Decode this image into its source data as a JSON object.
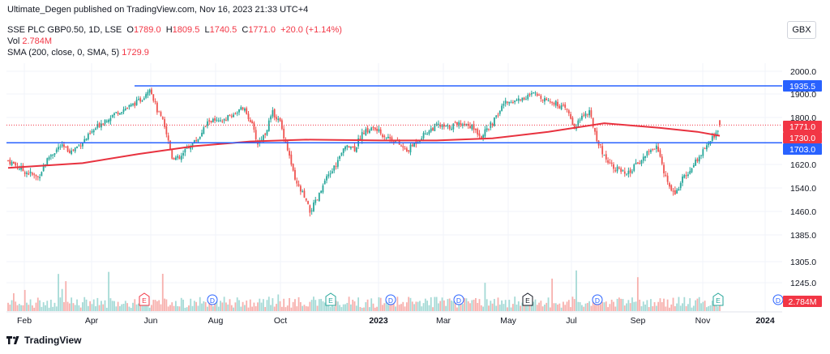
{
  "header": {
    "published": "Ultimate_Degen published on TradingView.com, Nov 16, 2023 21:33 UTC+4",
    "symbol_desc": "SSE PLC GBP0.50, 1D, LSE",
    "o_label": "O",
    "o_value": "1789.0",
    "h_label": "H",
    "h_value": "1809.5",
    "l_label": "L",
    "l_value": "1740.5",
    "c_label": "C",
    "c_value": "1771.0",
    "change": "+20.0 (+1.14%)",
    "vol_label": "Vol",
    "vol_value": "2.784M",
    "sma_label": "SMA (200, close, 0, SMA, 5)",
    "sma_value": "1729.9",
    "currency": "GBX"
  },
  "footer": {
    "brand": "TradingView"
  },
  "colors": {
    "up": "#26a69a",
    "down": "#ef5350",
    "sma": "#e8323f",
    "hline": "#2962ff",
    "label_red": "#f23645",
    "label_blue": "#2962ff"
  },
  "chart_data": {
    "type": "candlestick",
    "y_axis_ticks": [
      "2000.0",
      "1900.0",
      "1800.0",
      "1620.0",
      "1540.0",
      "1460.0",
      "1385.0",
      "1305.0",
      "1245.0"
    ],
    "y_axis_values": [
      2000,
      1900,
      1800,
      1620,
      1540,
      1460,
      1385,
      1305,
      1245
    ],
    "x_labels": [
      "Feb",
      "Apr",
      "Jun",
      "Aug",
      "Oct",
      "2023",
      "Mar",
      "May",
      "Jul",
      "Sep",
      "Nov",
      "2024"
    ],
    "price_labels": [
      {
        "text": "1935.5",
        "value": 1935.5,
        "kind": "blue"
      },
      {
        "text": "1771.0",
        "value": 1771.0,
        "kind": "red"
      },
      {
        "text": "1730.0",
        "value": 1730.0,
        "kind": "red"
      },
      {
        "text": "1703.0",
        "value": 1703.0,
        "kind": "blue"
      },
      {
        "text": "2.784M",
        "kind": "red_volume"
      }
    ],
    "horizontal_lines": [
      1935.5,
      1703.0
    ],
    "event_markers": [
      {
        "letter": "E",
        "style": "earnings-red",
        "month": "May"
      },
      {
        "letter": "D",
        "style": "dividend",
        "month": "Jun"
      },
      {
        "letter": "E",
        "style": "earnings-green",
        "month": "Aug"
      },
      {
        "letter": "D",
        "style": "dividend",
        "month": "Oct"
      },
      {
        "letter": "E",
        "style": "earnings-green",
        "month": "2023"
      },
      {
        "letter": "D",
        "style": "dividend",
        "month": "Feb 2023"
      },
      {
        "letter": "E",
        "style": "earnings-gray",
        "month": "May 2023"
      },
      {
        "letter": "D",
        "style": "dividend",
        "month": "Jul 2023"
      },
      {
        "letter": "E",
        "style": "earnings-green",
        "month": "Nov 2023"
      },
      {
        "letter": "D",
        "style": "dividend",
        "month": "2024"
      }
    ],
    "close_path": [
      {
        "t": 0,
        "c": 1635
      },
      {
        "t": 8,
        "c": 1600
      },
      {
        "t": 16,
        "c": 1575
      },
      {
        "t": 22,
        "c": 1650
      },
      {
        "t": 28,
        "c": 1690
      },
      {
        "t": 34,
        "c": 1670
      },
      {
        "t": 42,
        "c": 1720
      },
      {
        "t": 50,
        "c": 1780
      },
      {
        "t": 58,
        "c": 1820
      },
      {
        "t": 66,
        "c": 1850
      },
      {
        "t": 72,
        "c": 1880
      },
      {
        "t": 76,
        "c": 1930
      },
      {
        "t": 80,
        "c": 1830
      },
      {
        "t": 84,
        "c": 1770
      },
      {
        "t": 88,
        "c": 1650
      },
      {
        "t": 92,
        "c": 1640
      },
      {
        "t": 96,
        "c": 1680
      },
      {
        "t": 102,
        "c": 1720
      },
      {
        "t": 108,
        "c": 1790
      },
      {
        "t": 114,
        "c": 1780
      },
      {
        "t": 120,
        "c": 1810
      },
      {
        "t": 126,
        "c": 1840
      },
      {
        "t": 130,
        "c": 1790
      },
      {
        "t": 134,
        "c": 1700
      },
      {
        "t": 138,
        "c": 1740
      },
      {
        "t": 142,
        "c": 1820
      },
      {
        "t": 146,
        "c": 1780
      },
      {
        "t": 150,
        "c": 1680
      },
      {
        "t": 154,
        "c": 1560
      },
      {
        "t": 158,
        "c": 1520
      },
      {
        "t": 162,
        "c": 1460
      },
      {
        "t": 166,
        "c": 1500
      },
      {
        "t": 170,
        "c": 1560
      },
      {
        "t": 176,
        "c": 1620
      },
      {
        "t": 182,
        "c": 1700
      },
      {
        "t": 186,
        "c": 1680
      },
      {
        "t": 190,
        "c": 1740
      },
      {
        "t": 196,
        "c": 1760
      },
      {
        "t": 202,
        "c": 1730
      },
      {
        "t": 208,
        "c": 1710
      },
      {
        "t": 214,
        "c": 1670
      },
      {
        "t": 218,
        "c": 1700
      },
      {
        "t": 224,
        "c": 1740
      },
      {
        "t": 230,
        "c": 1770
      },
      {
        "t": 236,
        "c": 1760
      },
      {
        "t": 242,
        "c": 1780
      },
      {
        "t": 248,
        "c": 1770
      },
      {
        "t": 254,
        "c": 1730
      },
      {
        "t": 258,
        "c": 1760
      },
      {
        "t": 262,
        "c": 1800
      },
      {
        "t": 266,
        "c": 1860
      },
      {
        "t": 270,
        "c": 1870
      },
      {
        "t": 276,
        "c": 1880
      },
      {
        "t": 282,
        "c": 1900
      },
      {
        "t": 288,
        "c": 1880
      },
      {
        "t": 294,
        "c": 1860
      },
      {
        "t": 300,
        "c": 1830
      },
      {
        "t": 304,
        "c": 1760
      },
      {
        "t": 308,
        "c": 1810
      },
      {
        "t": 312,
        "c": 1820
      },
      {
        "t": 316,
        "c": 1720
      },
      {
        "t": 320,
        "c": 1650
      },
      {
        "t": 324,
        "c": 1620
      },
      {
        "t": 328,
        "c": 1600
      },
      {
        "t": 332,
        "c": 1580
      },
      {
        "t": 336,
        "c": 1610
      },
      {
        "t": 340,
        "c": 1640
      },
      {
        "t": 344,
        "c": 1670
      },
      {
        "t": 348,
        "c": 1690
      },
      {
        "t": 350,
        "c": 1640
      },
      {
        "t": 354,
        "c": 1560
      },
      {
        "t": 358,
        "c": 1520
      },
      {
        "t": 362,
        "c": 1570
      },
      {
        "t": 366,
        "c": 1600
      },
      {
        "t": 370,
        "c": 1640
      },
      {
        "t": 374,
        "c": 1680
      },
      {
        "t": 378,
        "c": 1720
      },
      {
        "t": 382,
        "c": 1771
      }
    ],
    "sma_path": [
      {
        "t": 0,
        "v": 1608
      },
      {
        "t": 40,
        "v": 1625
      },
      {
        "t": 70,
        "v": 1660
      },
      {
        "t": 100,
        "v": 1690
      },
      {
        "t": 130,
        "v": 1708
      },
      {
        "t": 160,
        "v": 1715
      },
      {
        "t": 200,
        "v": 1712
      },
      {
        "t": 230,
        "v": 1712
      },
      {
        "t": 260,
        "v": 1720
      },
      {
        "t": 290,
        "v": 1745
      },
      {
        "t": 320,
        "v": 1778
      },
      {
        "t": 350,
        "v": 1760
      },
      {
        "t": 370,
        "v": 1745
      },
      {
        "t": 382,
        "v": 1730
      }
    ]
  }
}
